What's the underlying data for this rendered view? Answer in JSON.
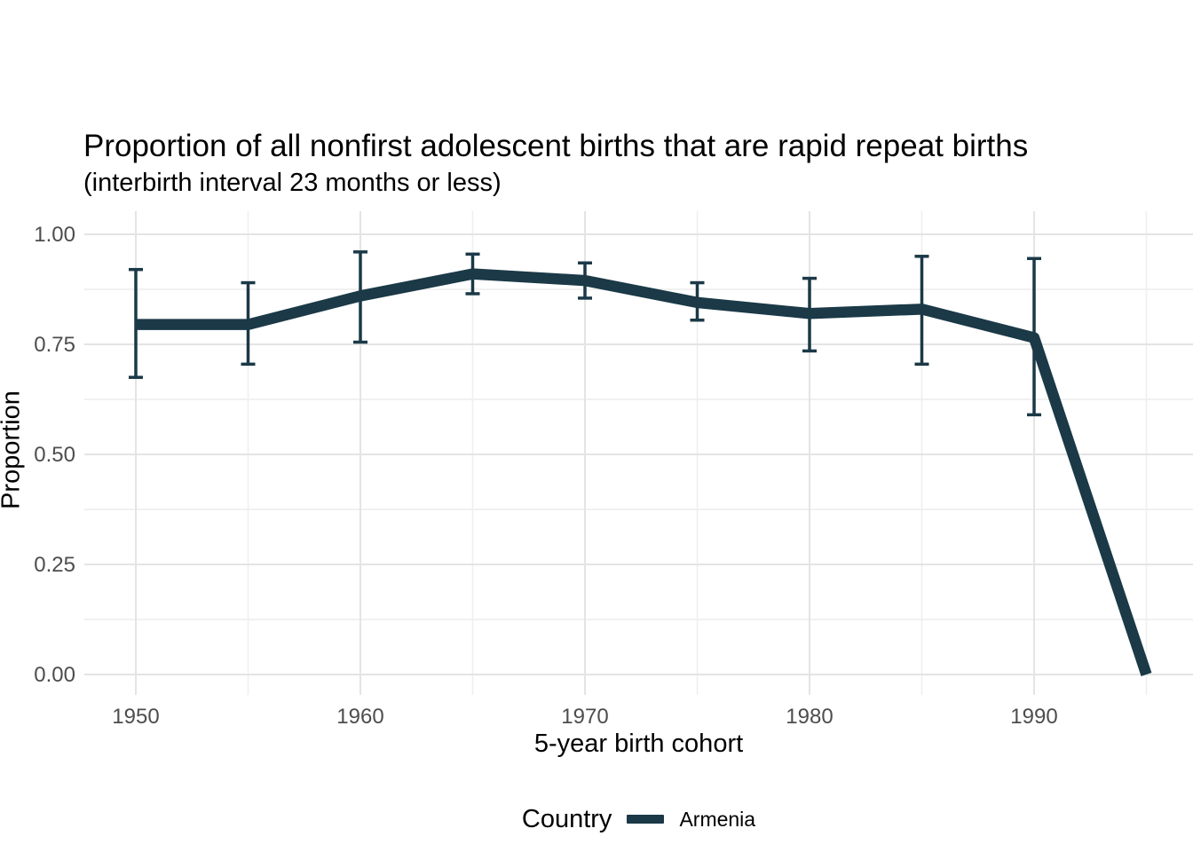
{
  "chart_data": {
    "type": "line",
    "title": "Proportion of all nonfirst adolescent births that are rapid repeat births",
    "subtitle": "(interbirth interval 23 months or less)",
    "xlabel": "5-year birth cohort",
    "ylabel": "Proportion",
    "x": [
      1950,
      1955,
      1960,
      1965,
      1970,
      1975,
      1980,
      1985,
      1990,
      1995
    ],
    "series": [
      {
        "name": "Armenia",
        "color": "#1b3947",
        "values": [
          0.795,
          0.795,
          0.86,
          0.91,
          0.895,
          0.845,
          0.82,
          0.83,
          0.765,
          0.0
        ],
        "ci_lower": [
          0.675,
          0.705,
          0.755,
          0.865,
          0.855,
          0.805,
          0.735,
          0.705,
          0.59,
          0.0
        ],
        "ci_upper": [
          0.92,
          0.89,
          0.96,
          0.955,
          0.935,
          0.89,
          0.9,
          0.95,
          0.945,
          0.0
        ]
      }
    ],
    "x_ticks": [
      1950,
      1960,
      1970,
      1980,
      1990
    ],
    "x_minor": [
      1955,
      1965,
      1975,
      1985,
      1995
    ],
    "y_ticks": [
      {
        "v": 0.0,
        "label": "0.00"
      },
      {
        "v": 0.25,
        "label": "0.25"
      },
      {
        "v": 0.5,
        "label": "0.50"
      },
      {
        "v": 0.75,
        "label": "0.75"
      },
      {
        "v": 1.0,
        "label": "1.00"
      }
    ],
    "y_minor": [
      0.125,
      0.375,
      0.625,
      0.875
    ],
    "xlim": [
      1948,
      1997.25
    ],
    "ylim": [
      0,
      1
    ],
    "grid": "major+minor",
    "legend_position": "bottom"
  },
  "legend": {
    "title": "Country",
    "items": [
      {
        "label": "Armenia",
        "color": "#1b3947"
      }
    ]
  },
  "styles": {
    "grid_major": "#e4e4e4",
    "grid_minor": "#efefef",
    "tick_color": "#4d4d4d",
    "accent": "#1b3947"
  }
}
